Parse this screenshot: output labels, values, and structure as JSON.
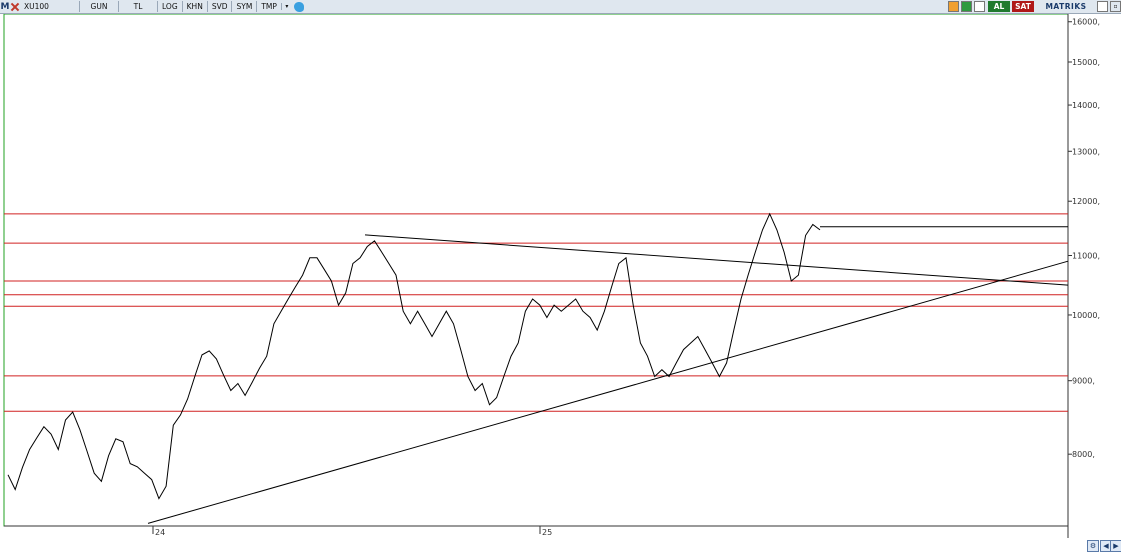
{
  "toolbar": {
    "logo": "M",
    "symbol": "XU100",
    "buttons": [
      "GUN",
      "TL",
      "LOG",
      "KHN",
      "SVD",
      "SYM",
      "TMP"
    ],
    "dropdown_glyph": "▾",
    "al_label": "AL",
    "sat_label": "SAT",
    "brand": "MATRIKS",
    "close_glyph": "▫"
  },
  "colors": {
    "price": "#000000",
    "horizontal_levels": "#d02020",
    "trendlines": "#000000",
    "frame_green": "#20a020",
    "axis_text": "#333333"
  },
  "chart_data": {
    "type": "line",
    "series": [
      {
        "values": [
          7740,
          7560,
          7830,
          8060,
          8210,
          8360,
          8260,
          8060,
          8450,
          8560,
          8320,
          8040,
          7760,
          7660,
          7980,
          8200,
          8160,
          7880,
          7840,
          7760,
          7680,
          7450,
          7600,
          8380,
          8520,
          8740,
          9060,
          9380,
          9440,
          9320,
          9080,
          8860,
          8960,
          8790,
          8980,
          9180,
          9360,
          9860,
          10060,
          10260,
          10460,
          10660,
          10960,
          10960,
          10760,
          10560,
          10160,
          10360,
          10860,
          10960,
          11160,
          11260,
          11060,
          10860,
          10660,
          10060,
          9860,
          10060,
          9860,
          9660,
          9860,
          10060,
          9860,
          9460,
          9060,
          8860,
          8960,
          8660,
          8760,
          9060,
          9360,
          9560,
          10060,
          10260,
          10160,
          9960,
          10160,
          10060,
          10160,
          10260,
          10060,
          9960,
          9760,
          10060,
          10460,
          10860,
          10960,
          10160,
          9560,
          9360,
          9060,
          9160,
          9060,
          9260,
          9460,
          9560,
          9660,
          9460,
          9260,
          9060,
          9260,
          9760,
          10260,
          10660,
          11060,
          11460,
          11760,
          11460,
          11060,
          10560,
          10660,
          11360,
          11560,
          11460
        ]
      }
    ],
    "x_tick_labels": [
      "24",
      "25"
    ],
    "y_tick_labels": [
      "16000,",
      "15000,",
      "14000,",
      "13000,",
      "12000,",
      "11000,",
      "10000,",
      "9000,",
      "8000,"
    ],
    "y_scale": "log",
    "ylim": [
      7130,
      16200
    ],
    "horizontal_levels": [
      11760,
      11220,
      10560,
      10330,
      10140,
      9070,
      8570
    ],
    "trendlines": [
      {
        "from": [
          148,
          7160
        ],
        "to": [
          1068,
          10900
        ]
      },
      {
        "from": [
          365,
          11370
        ],
        "to": [
          1068,
          10490
        ]
      }
    ],
    "last_price_marker": 11520,
    "grid": false,
    "legend": "none"
  }
}
